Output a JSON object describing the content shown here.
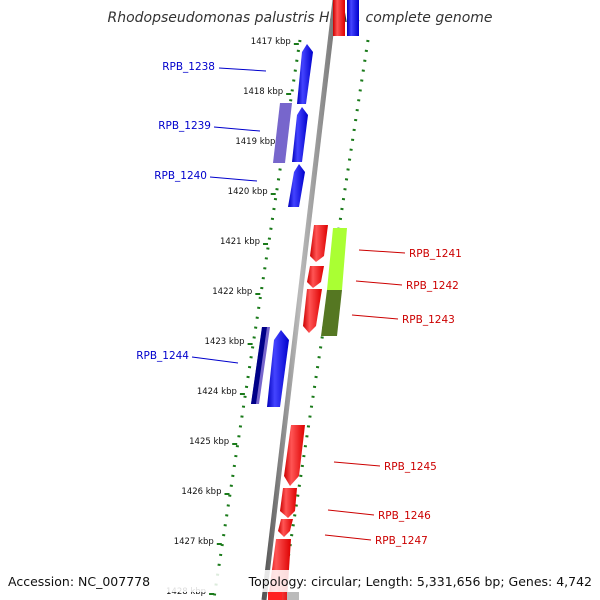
{
  "header": {
    "title": "Rhodopseudomonas palustris HaA2, complete genome"
  },
  "footer": {
    "accession": "Accession: NC_007778",
    "summary": "Topology: circular; Length: 5,331,656 bp; Genes: 4,742"
  },
  "scale": {
    "kbp_ticks": [
      {
        "kbp": 1417,
        "label": "1417 kbp"
      },
      {
        "kbp": 1418,
        "label": "1418 kbp"
      },
      {
        "kbp": 1419,
        "label": "1419 kbp"
      },
      {
        "kbp": 1420,
        "label": "1420 kbp"
      },
      {
        "kbp": 1421,
        "label": "1421 kbp"
      },
      {
        "kbp": 1422,
        "label": "1422 kbp"
      },
      {
        "kbp": 1423,
        "label": "1423 kbp"
      },
      {
        "kbp": 1424,
        "label": "1424 kbp"
      },
      {
        "kbp": 1425,
        "label": "1425 kbp"
      },
      {
        "kbp": 1426,
        "label": "1426 kbp"
      },
      {
        "kbp": 1427,
        "label": "1427 kbp"
      },
      {
        "kbp": 1428,
        "label": "1428 kbp"
      }
    ]
  },
  "genes": {
    "forward_labels": [
      "RPB_1241",
      "RPB_1242",
      "RPB_1243",
      "RPB_1245",
      "RPB_1246",
      "RPB_1247"
    ],
    "reverse_labels": [
      "RPB_1238",
      "RPB_1239",
      "RPB_1240",
      "RPB_1244"
    ]
  },
  "colors": {
    "forward": "#ff0000",
    "reverse": "#0000ff",
    "reverse_alt": "#7766cc",
    "reverse_dark": "#000088",
    "feature_green": "#aaff33",
    "feature_olive": "#557722",
    "dots": "#1a7a1a",
    "backbone": "#888888"
  }
}
